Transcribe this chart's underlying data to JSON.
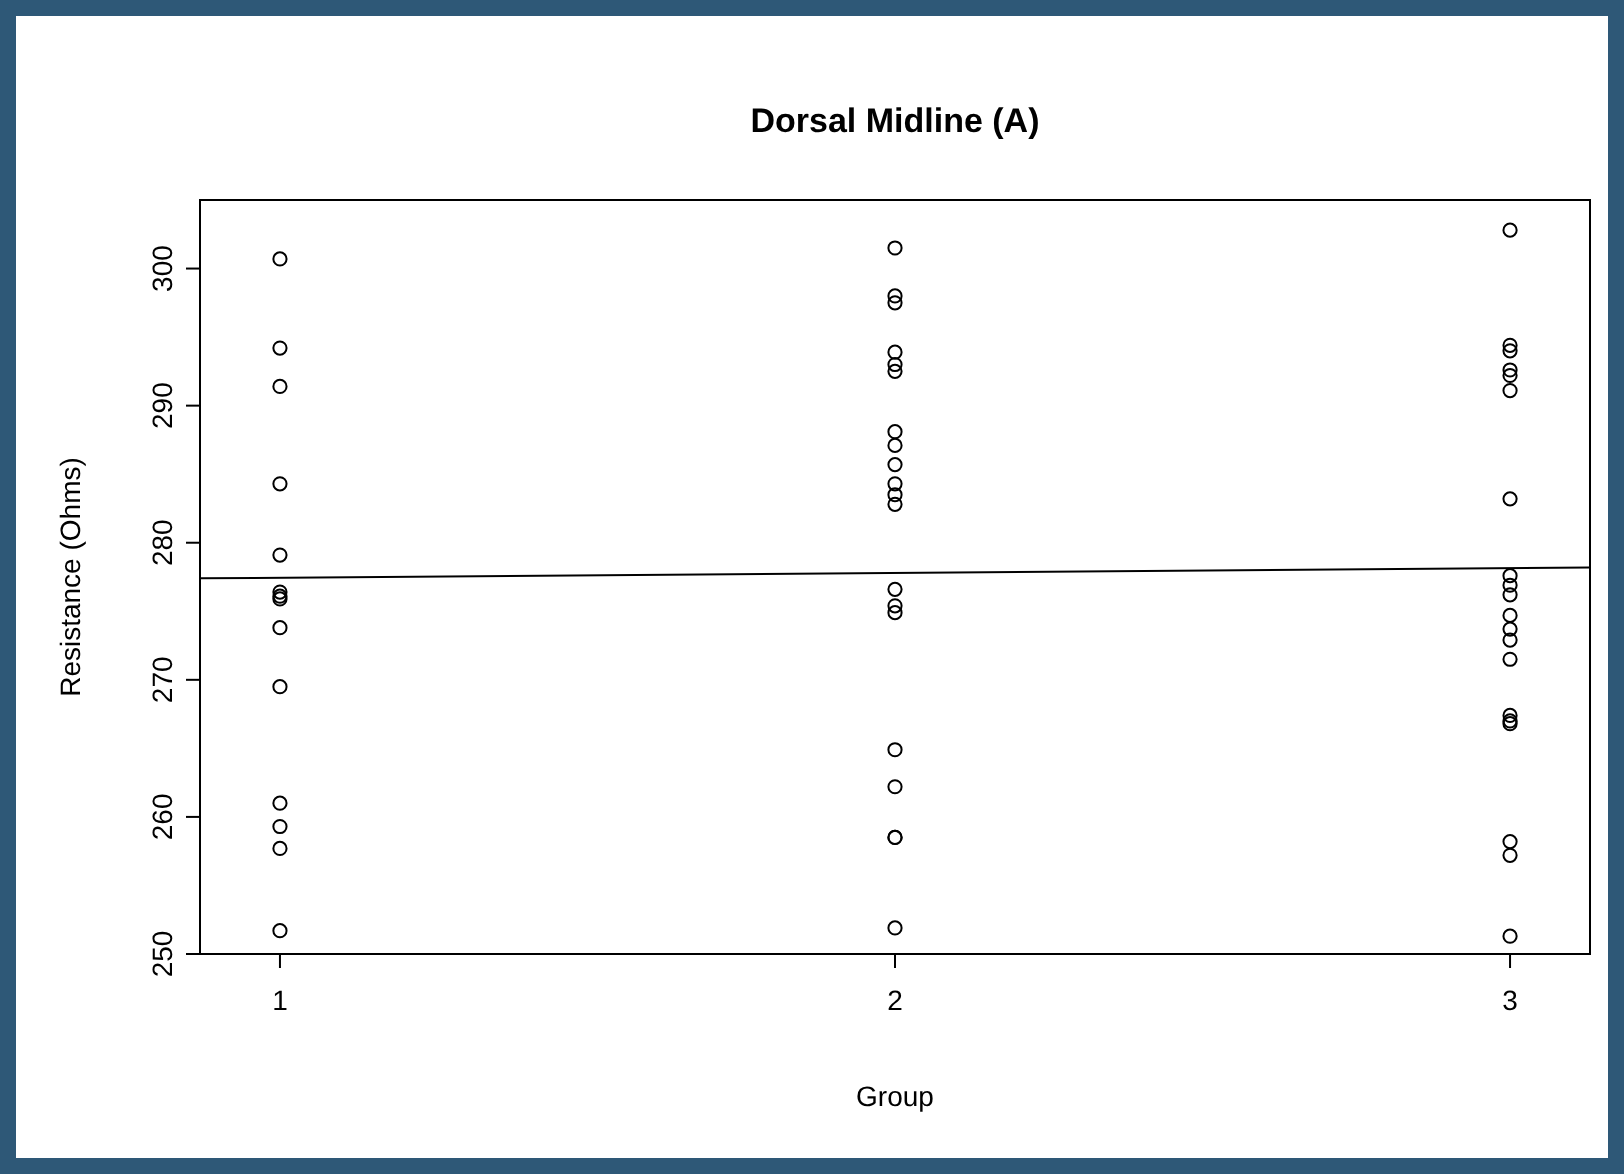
{
  "chart_data": {
    "type": "scatter",
    "title": "Dorsal Midline (A)",
    "xlabel": "Group",
    "ylabel": "Resistance (Ohms)",
    "xlim": [
      0.87,
      3.13
    ],
    "xticks": [
      1,
      2,
      3
    ],
    "ylim": [
      250,
      305
    ],
    "yticks": [
      250,
      260,
      270,
      280,
      290,
      300
    ],
    "grid": false,
    "marker": "circle",
    "series": [
      {
        "color": "#000000",
        "x": [
          1,
          1,
          1,
          1,
          1,
          1,
          1,
          1,
          1,
          1,
          1,
          1,
          1,
          1,
          2,
          2,
          2,
          2,
          2,
          2,
          2,
          2,
          2,
          2,
          2,
          2,
          2,
          2,
          2,
          2,
          2,
          2,
          2,
          2,
          3,
          3,
          3,
          3,
          3,
          3,
          3,
          3,
          3,
          3,
          3,
          3,
          3,
          3,
          3,
          3,
          3,
          3,
          3,
          3
        ],
        "values": [
          300.7,
          294.2,
          291.4,
          284.3,
          279.1,
          276.4,
          276.1,
          275.9,
          273.8,
          269.5,
          261.0,
          259.3,
          257.7,
          251.7,
          301.5,
          298.0,
          297.5,
          293.9,
          293.0,
          292.5,
          288.1,
          287.1,
          285.7,
          284.3,
          283.5,
          282.8,
          276.6,
          275.4,
          274.9,
          264.9,
          262.2,
          258.5,
          258.5,
          251.9,
          302.8,
          294.4,
          294.0,
          292.6,
          292.2,
          291.1,
          283.2,
          277.6,
          276.9,
          276.2,
          274.7,
          273.7,
          272.9,
          271.5,
          267.4,
          267.0,
          266.8,
          258.2,
          257.2,
          251.3
        ]
      },
      {
        "type": "line",
        "color": "#000000",
        "marker": "none",
        "x": [
          0.87,
          3.13
        ],
        "values": [
          277.4,
          278.2
        ]
      }
    ]
  }
}
